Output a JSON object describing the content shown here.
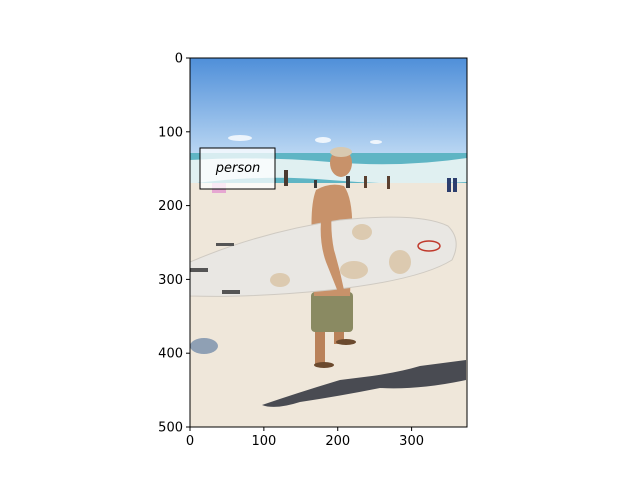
{
  "figure": {
    "axes": {
      "xlim": [
        0,
        375
      ],
      "ylim": [
        500,
        0
      ],
      "x_ticks": [
        0,
        100,
        200,
        300
      ],
      "y_ticks": [
        0,
        100,
        200,
        300,
        400,
        500
      ]
    },
    "photo": {
      "description_icon": "beach-surfer-photo",
      "colors": {
        "sky_top": "#4f8fd9",
        "sky_bottom": "#bcd8f3",
        "ocean": "#5fb5c4",
        "surf": "#eef6f6",
        "sand": "#efe7da",
        "surfboard": "#e9e7e3",
        "skin": "#c8926a",
        "shorts": "#8a8a62",
        "shadow": "#2b2f3a"
      }
    },
    "annotations": [
      {
        "label": "person"
      }
    ]
  }
}
